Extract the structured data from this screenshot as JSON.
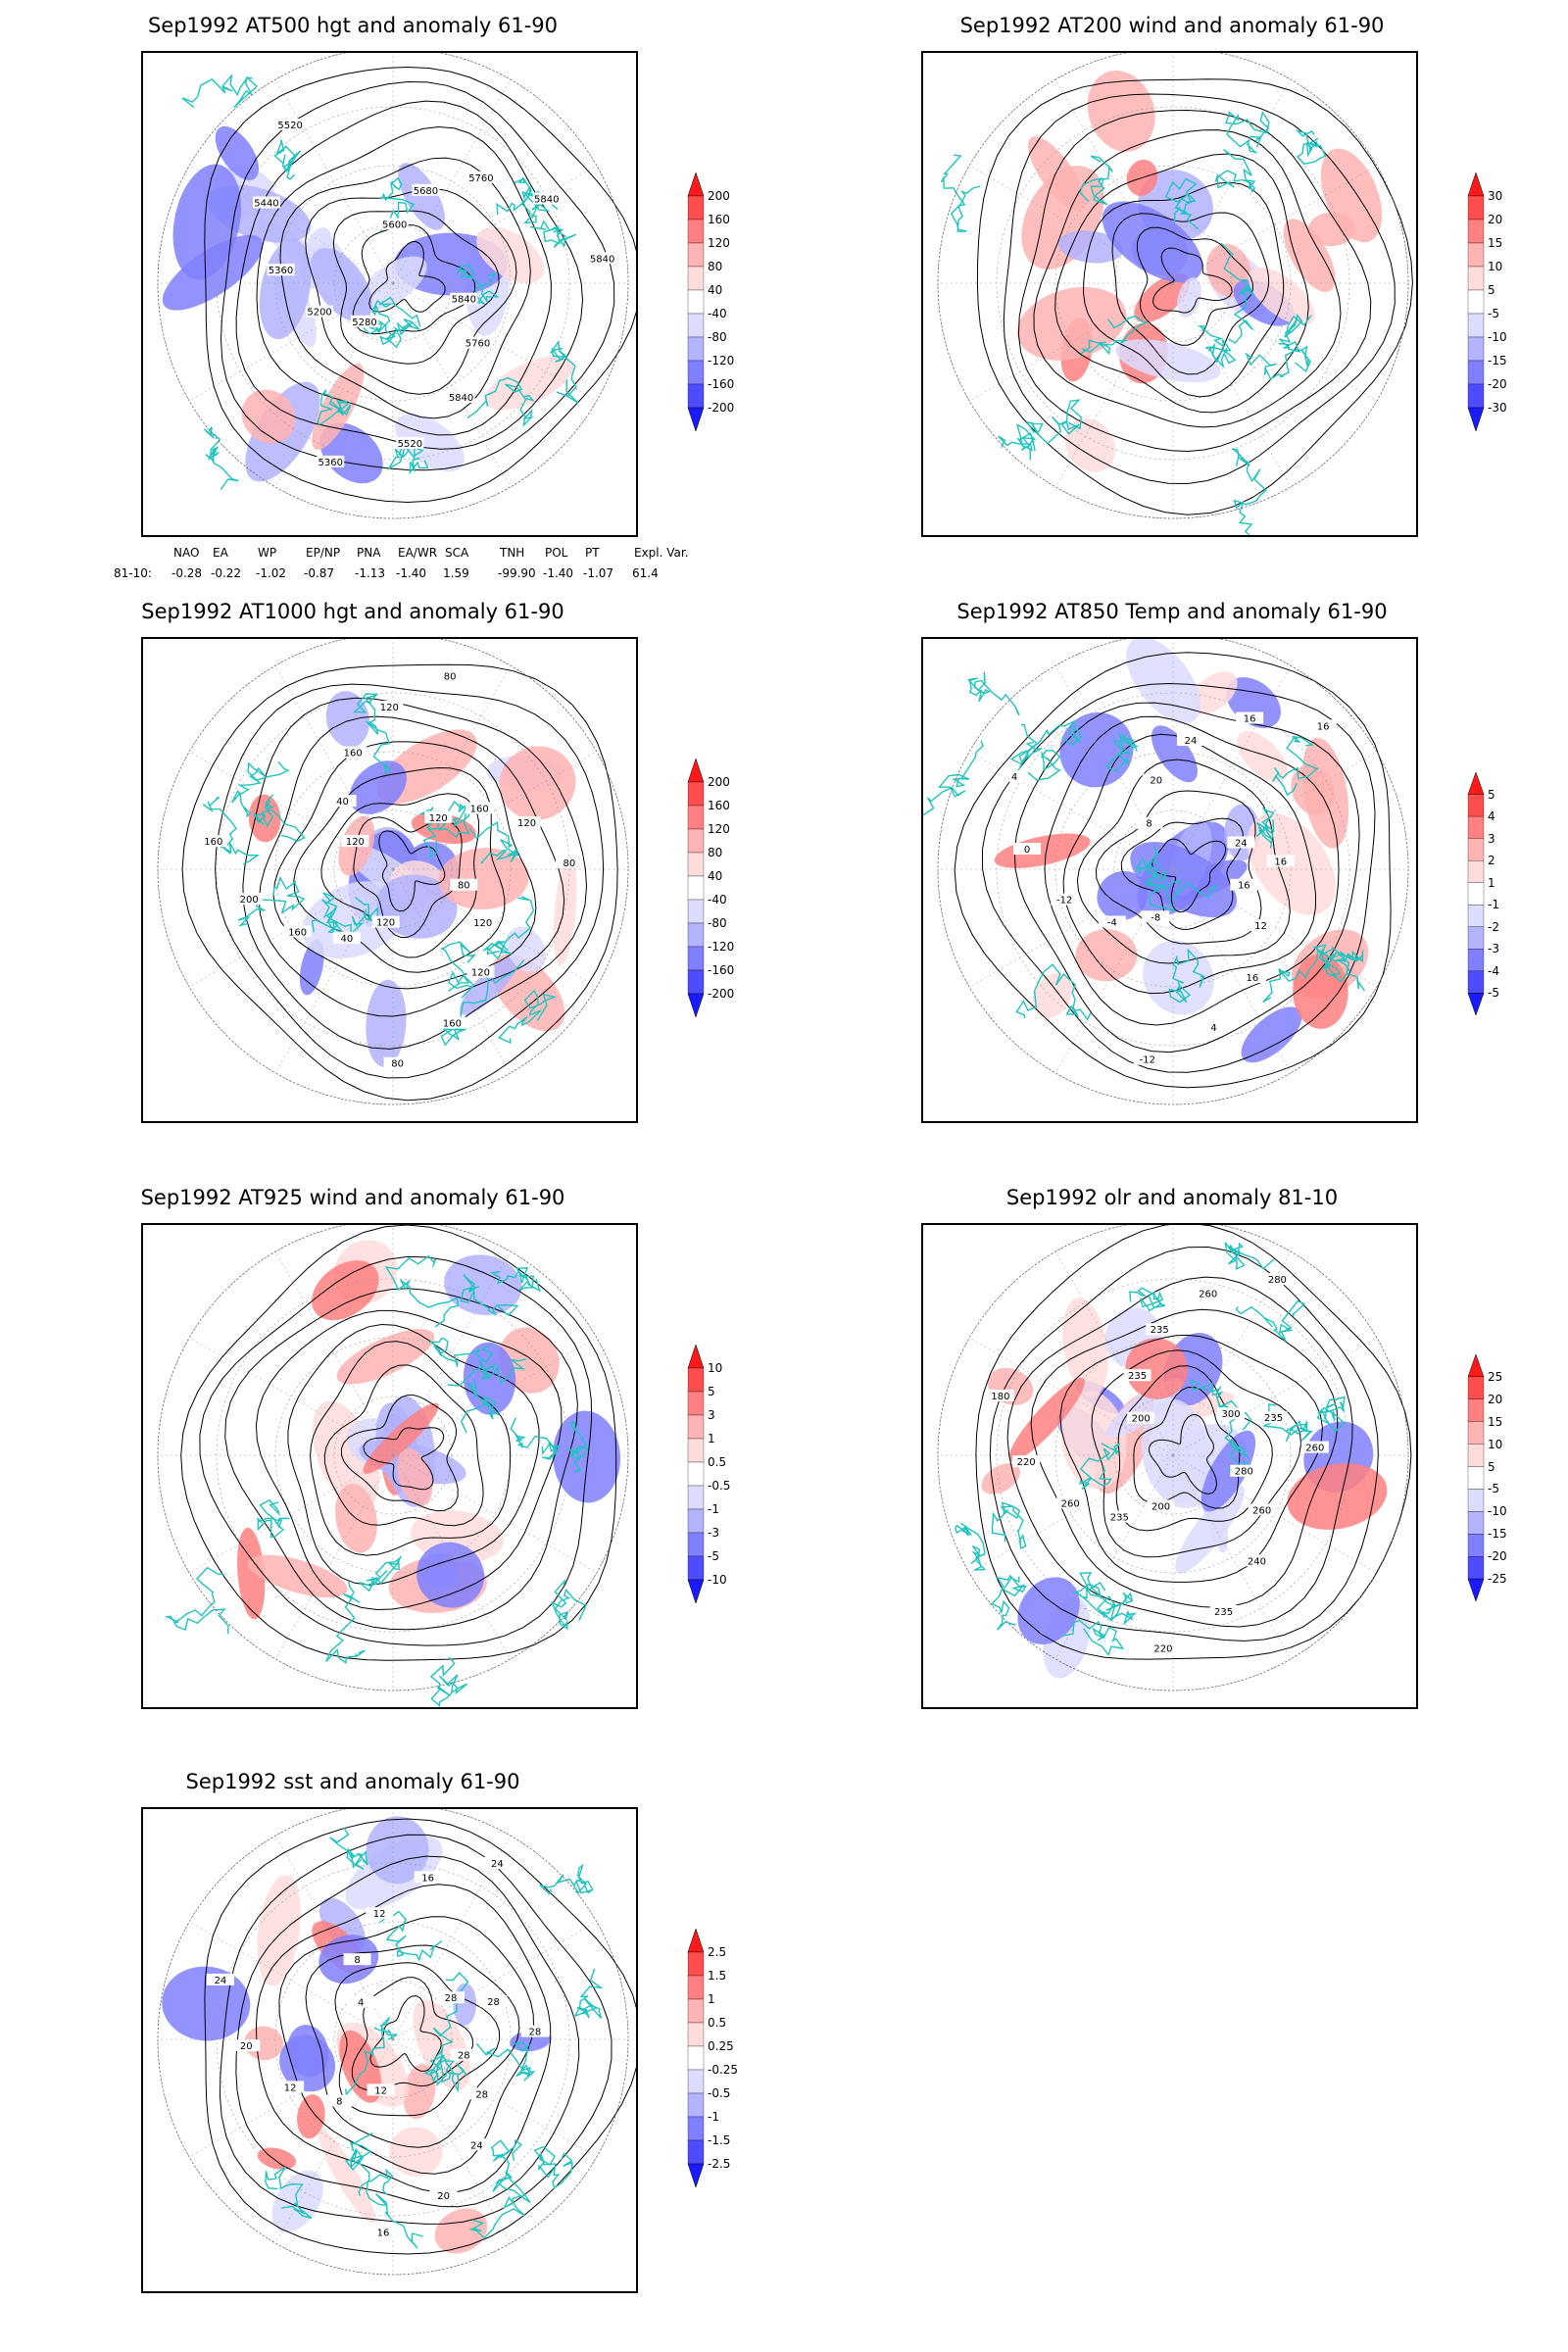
{
  "colors": {
    "anom_scale": [
      "#1a1aff",
      "#4d4dff",
      "#8080ff",
      "#b3b3ff",
      "#dcdcff",
      "#ffffff",
      "#ffdcdc",
      "#ffb3b3",
      "#ff8080",
      "#ff4d4d",
      "#ff1a1a"
    ],
    "contour": "#000000",
    "coast": "#1fc4c0"
  },
  "panels": [
    {
      "title": "Sep1992 AT500 hgt and anomaly 61-90",
      "colorbar_labels": [
        "200",
        "160",
        "120",
        "80",
        "40",
        "-40",
        "-80",
        "-120",
        "-160",
        "-200"
      ],
      "contour_labels": [
        "5840",
        "5760",
        "5840",
        "5520",
        "5360",
        "5280",
        "5200",
        "5360",
        "5440",
        "5520",
        "5600",
        "5680",
        "5760",
        "5840",
        "5840"
      ],
      "anomaly_icon": "height-anomaly"
    },
    {
      "title": "Sep1992 AT200 wind and anomaly 61-90",
      "colorbar_labels": [
        "30",
        "20",
        "15",
        "10",
        "5",
        "-5",
        "-10",
        "-15",
        "-20",
        "-30"
      ],
      "contour_labels": [],
      "anomaly_icon": "streamlines"
    },
    {
      "title": "Sep1992 AT1000 hgt and anomaly 61-90",
      "colorbar_labels": [
        "200",
        "160",
        "120",
        "80",
        "40",
        "-40",
        "-80",
        "-120",
        "-160",
        "-200"
      ],
      "contour_labels": [
        "80",
        "120",
        "120",
        "160",
        "80",
        "120",
        "40",
        "160",
        "200",
        "160",
        "120",
        "40",
        "160",
        "120",
        "80",
        "120",
        "160",
        "120",
        "80"
      ],
      "anomaly_icon": "height-anomaly"
    },
    {
      "title": "Sep1992 AT850 Temp and anomaly 61-90",
      "colorbar_labels": [
        "5",
        "4",
        "3",
        "2",
        "1",
        "-1",
        "-2",
        "-3",
        "-4",
        "-5"
      ],
      "contour_labels": [
        "16",
        "12",
        "16",
        "4",
        "-12",
        "-8",
        "-4",
        "-12",
        "0",
        "4",
        "8",
        "20",
        "24",
        "16",
        "16",
        "24",
        "16"
      ],
      "anomaly_icon": "temperature-anomaly"
    },
    {
      "title": "Sep1992 AT925 wind and anomaly 61-90",
      "colorbar_labels": [
        "10",
        "5",
        "3",
        "1",
        "0.5",
        "-0.5",
        "-1",
        "-3",
        "-5",
        "-10"
      ],
      "contour_labels": [],
      "anomaly_icon": "streamlines"
    },
    {
      "title": "Sep1992 olr and anomaly 81-10",
      "colorbar_labels": [
        "25",
        "20",
        "15",
        "10",
        "5",
        "-5",
        "-10",
        "-15",
        "-20",
        "-25"
      ],
      "contour_labels": [
        "280",
        "260",
        "240",
        "235",
        "220",
        "200",
        "235",
        "260",
        "220",
        "180",
        "200",
        "235",
        "235",
        "260",
        "280",
        "300",
        "235",
        "260"
      ],
      "anomaly_icon": "olr-anomaly"
    },
    {
      "title": "Sep1992 sst and anomaly 61-90",
      "colorbar_labels": [
        "2.5",
        "1.5",
        "1",
        "0.5",
        "0.25",
        "-0.25",
        "-0.5",
        "-1",
        "-1.5",
        "-2.5"
      ],
      "contour_labels": [
        "28",
        "28",
        "24",
        "20",
        "16",
        "12",
        "8",
        "12",
        "20",
        "24",
        "4",
        "8",
        "12",
        "16",
        "24",
        "28",
        "28",
        "28"
      ],
      "anomaly_icon": "sst-anomaly"
    }
  ],
  "teleconnections": {
    "headers": [
      "NAO",
      "EA",
      "WP",
      "EP/NP",
      "PNA",
      "EA/WR",
      "SCA",
      "TNH",
      "POL",
      "PT",
      "Expl. Var."
    ],
    "row_label": "81-10:",
    "values": [
      "-0.28",
      "-0.22",
      "-1.02",
      "-0.87",
      "-1.13",
      "-1.40",
      "1.59",
      "-99.90",
      "-1.40",
      "-1.07",
      "61.4"
    ]
  }
}
